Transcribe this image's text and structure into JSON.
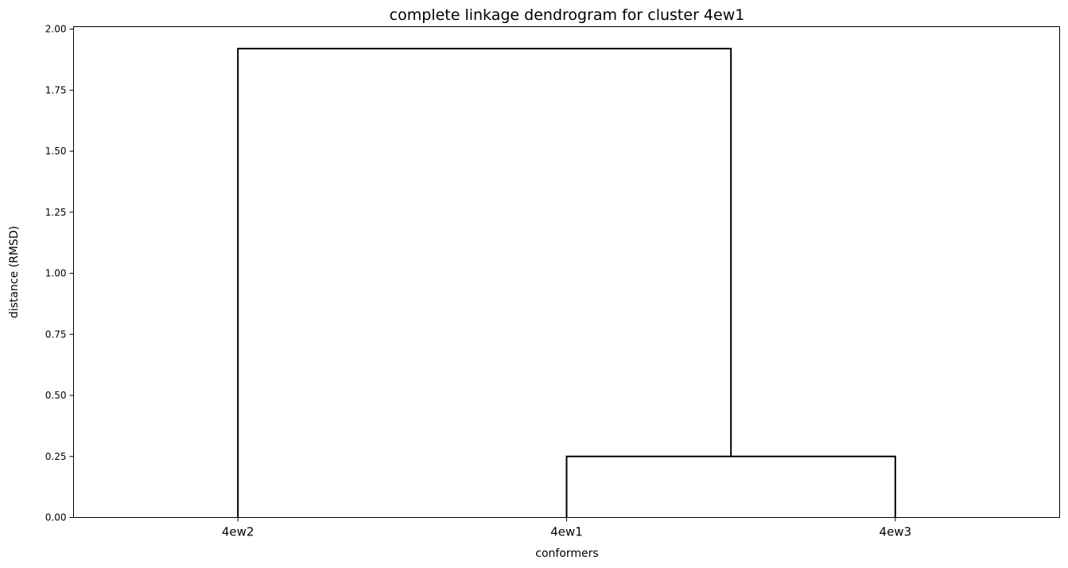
{
  "chart_data": {
    "type": "dendrogram",
    "title": "complete linkage dendrogram for cluster 4ew1",
    "xlabel": "conformers",
    "ylabel": "distance (RMSD)",
    "leaves": [
      "4ew2",
      "4ew1",
      "4ew3"
    ],
    "ylim": [
      0,
      2.01
    ],
    "yticks": [
      "0.00",
      "0.25",
      "0.50",
      "0.75",
      "1.00",
      "1.25",
      "1.50",
      "1.75",
      "2.00"
    ],
    "merges": [
      {
        "left": "4ew1",
        "right": "4ew3",
        "height": 0.25
      },
      {
        "left": "4ew2",
        "right": "4ew1+4ew3",
        "height": 1.92
      }
    ],
    "line_color": "#000000",
    "grid": false
  }
}
